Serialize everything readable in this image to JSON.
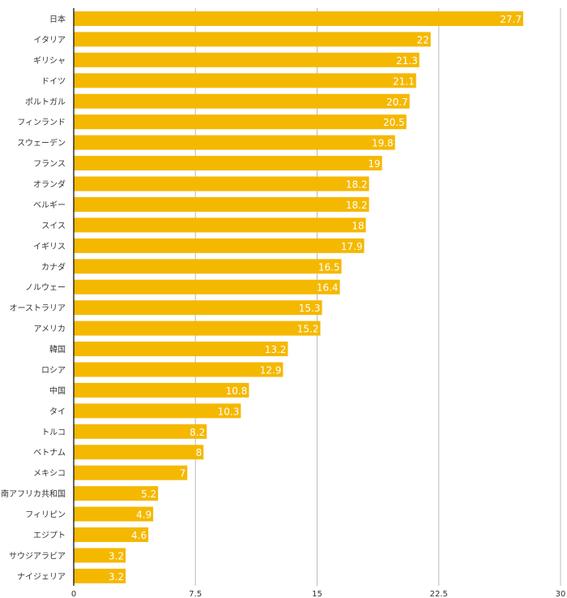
{
  "chart_data": {
    "type": "bar",
    "orientation": "horizontal",
    "categories": [
      "日本",
      "イタリア",
      "ギリシャ",
      "ドイツ",
      "ポルトガル",
      "フィンランド",
      "スウェーデン",
      "フランス",
      "オランダ",
      "ベルギー",
      "スイス",
      "イギリス",
      "カナダ",
      "ノルウェー",
      "オーストラリア",
      "アメリカ",
      "韓国",
      "ロシア",
      "中国",
      "タイ",
      "トルコ",
      "ベトナム",
      "メキシコ",
      "南アフリカ共和国",
      "フィリピン",
      "エジプト",
      "サウジアラビア",
      "ナイジェリア"
    ],
    "values": [
      27.7,
      22,
      21.3,
      21.1,
      20.7,
      20.5,
      19.8,
      19,
      18.2,
      18.2,
      18,
      17.9,
      16.5,
      16.4,
      15.3,
      15.2,
      13.2,
      12.9,
      10.8,
      10.3,
      8.2,
      8,
      7,
      5.2,
      4.9,
      4.6,
      3.2,
      3.2
    ],
    "value_labels": [
      "27.7",
      "22",
      "21.3",
      "21.1",
      "20.7",
      "20.5",
      "19.8",
      "19",
      "18.2",
      "18.2",
      "18",
      "17.9",
      "16.5",
      "16.4",
      "15.3",
      "15.2",
      "13.2",
      "12.9",
      "10.8",
      "10.3",
      "8.2",
      "8",
      "7",
      "5.2",
      "4.9",
      "4.6",
      "3.2",
      "3.2"
    ],
    "xlim": [
      0,
      30
    ],
    "xticks": [
      0,
      7.5,
      15,
      22.5,
      30
    ],
    "xtick_labels": [
      "0",
      "7.5",
      "15",
      "22.5",
      "30"
    ],
    "grid": true,
    "bar_color": "#F5B800",
    "title": "",
    "xlabel": "",
    "ylabel": ""
  }
}
